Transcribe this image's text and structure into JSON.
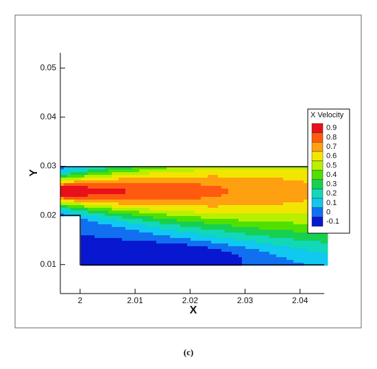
{
  "chart_data": {
    "type": "contour",
    "xlabel": "X",
    "ylabel": "Y",
    "xlim": [
      1.9964,
      2.0444
    ],
    "ylim": [
      0.0041,
      0.0531
    ],
    "xticks": [
      2,
      2.01,
      2.02,
      2.03,
      2.04
    ],
    "yticks": [
      0.01,
      0.02,
      0.03,
      0.04,
      0.05
    ],
    "legend_title": "X Velocity",
    "levels": [
      0.9,
      0.8,
      0.7,
      0.6,
      0.5,
      0.4,
      0.3,
      0.2,
      0.1,
      0,
      -0.1
    ],
    "colors": [
      "#e8101a",
      "#ff5a10",
      "#ffa010",
      "#f2e600",
      "#b8f000",
      "#50e000",
      "#18d050",
      "#10d8b8",
      "#10c8f0",
      "#1070f0",
      "#0818d0"
    ],
    "caption": "(c)"
  }
}
